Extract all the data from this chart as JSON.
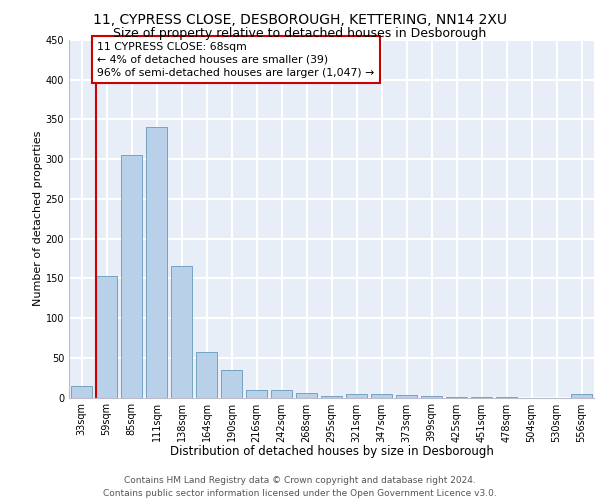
{
  "title1": "11, CYPRESS CLOSE, DESBOROUGH, KETTERING, NN14 2XU",
  "title2": "Size of property relative to detached houses in Desborough",
  "xlabel": "Distribution of detached houses by size in Desborough",
  "ylabel": "Number of detached properties",
  "categories": [
    "33sqm",
    "59sqm",
    "85sqm",
    "111sqm",
    "138sqm",
    "164sqm",
    "190sqm",
    "216sqm",
    "242sqm",
    "268sqm",
    "295sqm",
    "321sqm",
    "347sqm",
    "373sqm",
    "399sqm",
    "425sqm",
    "451sqm",
    "478sqm",
    "504sqm",
    "530sqm",
    "556sqm"
  ],
  "values": [
    15,
    153,
    305,
    340,
    165,
    57,
    35,
    10,
    9,
    6,
    2,
    5,
    4,
    3,
    2,
    1,
    1,
    1,
    0,
    0,
    4
  ],
  "bar_color": "#b8d0e8",
  "bar_edge_color": "#6699bb",
  "property_line_color": "#cc0000",
  "annotation_text": "11 CYPRESS CLOSE: 68sqm\n← 4% of detached houses are smaller (39)\n96% of semi-detached houses are larger (1,047) →",
  "ylim": [
    0,
    450
  ],
  "yticks": [
    0,
    50,
    100,
    150,
    200,
    250,
    300,
    350,
    400,
    450
  ],
  "background_color": "#e8eef8",
  "grid_color": "#ffffff",
  "footer_text": "Contains HM Land Registry data © Crown copyright and database right 2024.\nContains public sector information licensed under the Open Government Licence v3.0.",
  "title_fontsize": 10,
  "subtitle_fontsize": 9,
  "xlabel_fontsize": 8.5,
  "ylabel_fontsize": 8,
  "tick_fontsize": 7,
  "footer_fontsize": 6.5,
  "annot_fontsize": 7.8
}
